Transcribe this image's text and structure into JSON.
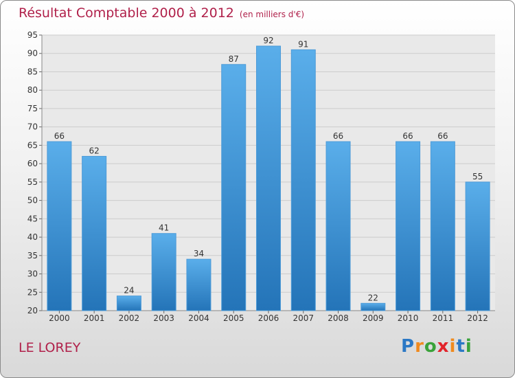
{
  "title": "Résultat Comptable 2000 à 2012",
  "unit": "(en milliers d'€)",
  "place": "LE LOREY",
  "logo": {
    "text": "Proxiti",
    "letters": [
      "P",
      "r",
      "o",
      "x",
      "i",
      "t",
      "i"
    ],
    "colors": [
      "#2b78c5",
      "#f08a1e",
      "#3aa23a",
      "#e2242b",
      "#f08a1e",
      "#2b78c5",
      "#3aa23a"
    ]
  },
  "colors": {
    "bar_light": "#5aaeea",
    "bar_dark": "#2474b8",
    "grid": "#cccccc",
    "title": "#b0204a"
  },
  "chart_data": {
    "type": "bar",
    "title": "Résultat Comptable 2000 à 2012",
    "subtitle": "(en milliers d'€)",
    "xlabel": "",
    "ylabel": "",
    "categories": [
      "2000",
      "2001",
      "2002",
      "2003",
      "2004",
      "2005",
      "2006",
      "2007",
      "2008",
      "2009",
      "2010",
      "2011",
      "2012"
    ],
    "values": [
      66,
      62,
      24,
      41,
      34,
      87,
      92,
      91,
      66,
      22,
      66,
      66,
      55
    ],
    "ylim": [
      20,
      95
    ],
    "yticks": [
      20,
      25,
      30,
      35,
      40,
      45,
      50,
      55,
      60,
      65,
      70,
      75,
      80,
      85,
      90,
      95
    ],
    "grid": true
  }
}
